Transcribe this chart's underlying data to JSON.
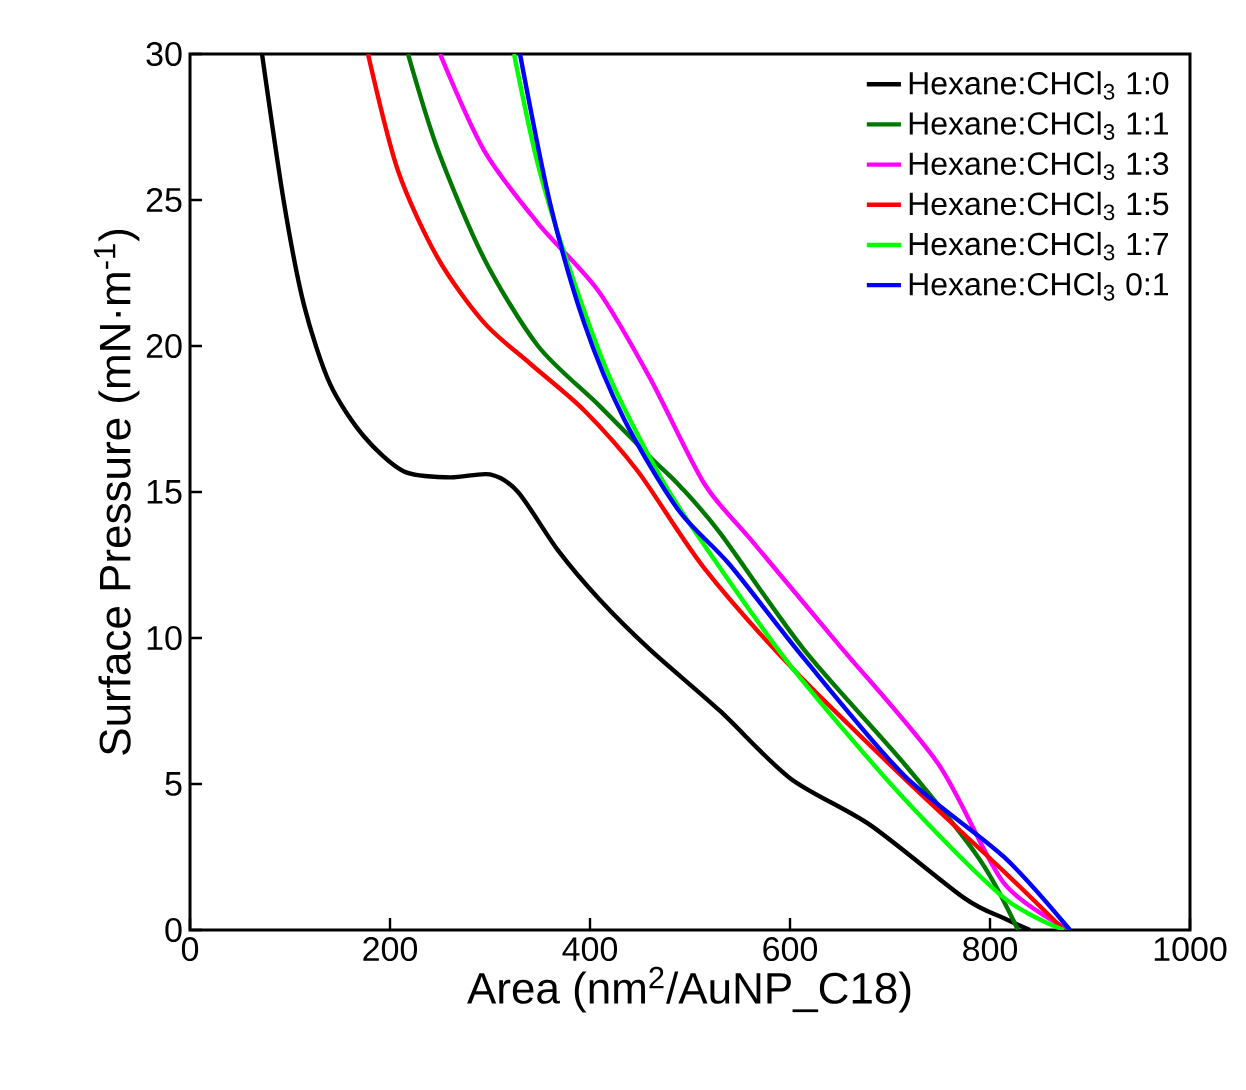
{
  "chart_data": {
    "type": "line",
    "xlabel": "Area (nm$^{2}$/AuNP_C18)",
    "ylabel": "Surface Pressure (mN·m$^{-1}$)",
    "xlim": [
      0,
      1000
    ],
    "ylim": [
      0,
      30
    ],
    "xticks": [
      0,
      200,
      400,
      600,
      800,
      1000
    ],
    "yticks": [
      0,
      5,
      10,
      15,
      20,
      25,
      30
    ],
    "grid": false,
    "legend": "top right",
    "line_style": "solid",
    "marker": "none",
    "series": [
      {
        "name": "Hexane:CHCl$_{3}$ 1:0",
        "color": "#000000",
        "x": [
          72,
          94,
          114,
          140,
          174,
          214,
          260,
          300,
          328,
          368,
          410,
          460,
          530,
          600,
          680,
          774,
          814,
          840
        ],
        "values": [
          30,
          24.9,
          21.4,
          18.7,
          16.9,
          15.7,
          15.5,
          15.6,
          15.0,
          13.0,
          11.3,
          9.6,
          7.5,
          5.2,
          3.6,
          1.1,
          0.4,
          0
        ]
      },
      {
        "name": "Hexane:CHCl$_{3}$ 1:1",
        "color": "#007800",
        "x": [
          218,
          248,
          294,
          348,
          408,
          460,
          490,
          530,
          614,
          714,
          790,
          828
        ],
        "values": [
          30,
          26.7,
          23,
          20,
          18,
          16.2,
          15.2,
          13.6,
          9.6,
          5.7,
          2.4,
          0
        ]
      },
      {
        "name": "Hexane:CHCl$_{3}$ 1:3",
        "color": "#ff00ff",
        "x": [
          250,
          294,
          348,
          408,
          460,
          514,
          560,
          648,
          748,
          814,
          880
        ],
        "values": [
          30,
          26.7,
          24.2,
          21.9,
          18.9,
          15.3,
          13.4,
          9.8,
          5.7,
          1.6,
          0
        ]
      },
      {
        "name": "Hexane:CHCl$_{3}$ 1:5",
        "color": "#ff0000",
        "x": [
          178,
          208,
          248,
          294,
          340,
          394,
          448,
          514,
          604,
          714,
          814,
          874
        ],
        "values": [
          30,
          26,
          23,
          20.8,
          19.4,
          17.8,
          15.7,
          12.4,
          8.9,
          5.2,
          2.0,
          0
        ]
      },
      {
        "name": "Hexane:CHCl$_{3}$ 1:7",
        "color": "#00ff00",
        "x": [
          324,
          348,
          380,
          420,
          474,
          528,
          604,
          714,
          814,
          874
        ],
        "values": [
          30,
          26.2,
          22.6,
          18.9,
          15.3,
          12.5,
          8.9,
          4.5,
          1.1,
          0
        ]
      },
      {
        "name": "Hexane:CHCl$_{3}$ 0:1",
        "color": "#0000ff",
        "x": [
          330,
          360,
          394,
          434,
          488,
          540,
          614,
          714,
          814,
          880
        ],
        "values": [
          30,
          24.9,
          20.8,
          17.5,
          14.4,
          12.5,
          9.3,
          5.3,
          2.5,
          0
        ]
      }
    ]
  }
}
